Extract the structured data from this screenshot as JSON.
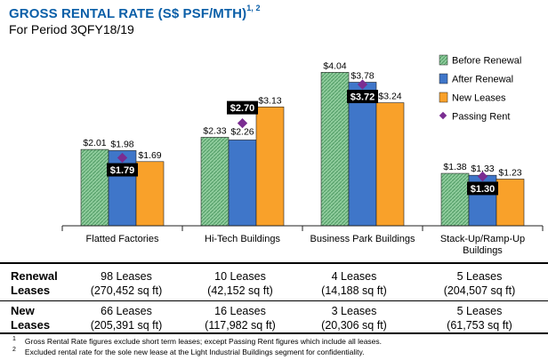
{
  "header": {
    "title": "GROSS RENTAL RATE (S$ PSF/MTH)",
    "title_sup": "1, 2",
    "subtitle": "For Period 3QFY18/19"
  },
  "chart_data": {
    "type": "bar",
    "title": "GROSS RENTAL RATE (S$ PSF/MTH)",
    "categories": [
      "Flatted Factories",
      "Hi-Tech Buildings",
      "Business Park Buildings",
      "Stack-Up/Ramp-Up Buildings"
    ],
    "series": [
      {
        "name": "Before Renewal",
        "values": [
          2.01,
          2.33,
          4.04,
          1.38
        ],
        "labels": [
          "$2.01",
          "$2.33",
          "$4.04",
          "$1.38"
        ],
        "color": "#7fbf8f"
      },
      {
        "name": "After Renewal",
        "values": [
          1.98,
          2.26,
          3.78,
          1.33
        ],
        "labels": [
          "$1.98",
          "$2.26",
          "$3.78",
          "$1.33"
        ],
        "color": "#3f76c9"
      },
      {
        "name": "New Leases",
        "values": [
          1.69,
          3.13,
          3.24,
          1.23
        ],
        "labels": [
          "$1.69",
          "$3.13",
          "$3.24",
          "$1.23"
        ],
        "color": "#f9a12a"
      },
      {
        "name": "Passing Rent",
        "type": "marker",
        "values": [
          1.79,
          2.7,
          3.72,
          1.3
        ],
        "labels": [
          "$1.79",
          "$2.70",
          "$3.72",
          "$1.30"
        ],
        "color": "#7a2d91"
      }
    ],
    "ylim": [
      0,
      4.4
    ],
    "grid": false,
    "legend": "top-right",
    "xlabel": "",
    "ylabel": ""
  },
  "table": {
    "rows": [
      {
        "label_line1": "Renewal",
        "label_line2": "Leases",
        "cells": [
          {
            "line1": "98 Leases",
            "line2": "(270,452 sq ft)"
          },
          {
            "line1": "10 Leases",
            "line2": "(42,152 sq ft)"
          },
          {
            "line1": "4 Leases",
            "line2": "(14,188 sq ft)"
          },
          {
            "line1": "5 Leases",
            "line2": "(204,507 sq ft)"
          }
        ]
      },
      {
        "label_line1": "New",
        "label_line2": "Leases",
        "cells": [
          {
            "line1": "66 Leases",
            "line2": "(205,391 sq ft)"
          },
          {
            "line1": "16 Leases",
            "line2": "(117,982 sq ft)"
          },
          {
            "line1": "3 Leases",
            "line2": "(20,306 sq ft)"
          },
          {
            "line1": "5 Leases",
            "line2": "(61,753 sq ft)"
          }
        ]
      }
    ]
  },
  "footnotes": [
    {
      "num": "1",
      "text": "Gross Rental Rate figures exclude short term leases; except Passing Rent figures which include all leases."
    },
    {
      "num": "2",
      "text": "Excluded rental rate for the sole new lease at the Light Industrial Buildings segment for confidentiality."
    }
  ]
}
